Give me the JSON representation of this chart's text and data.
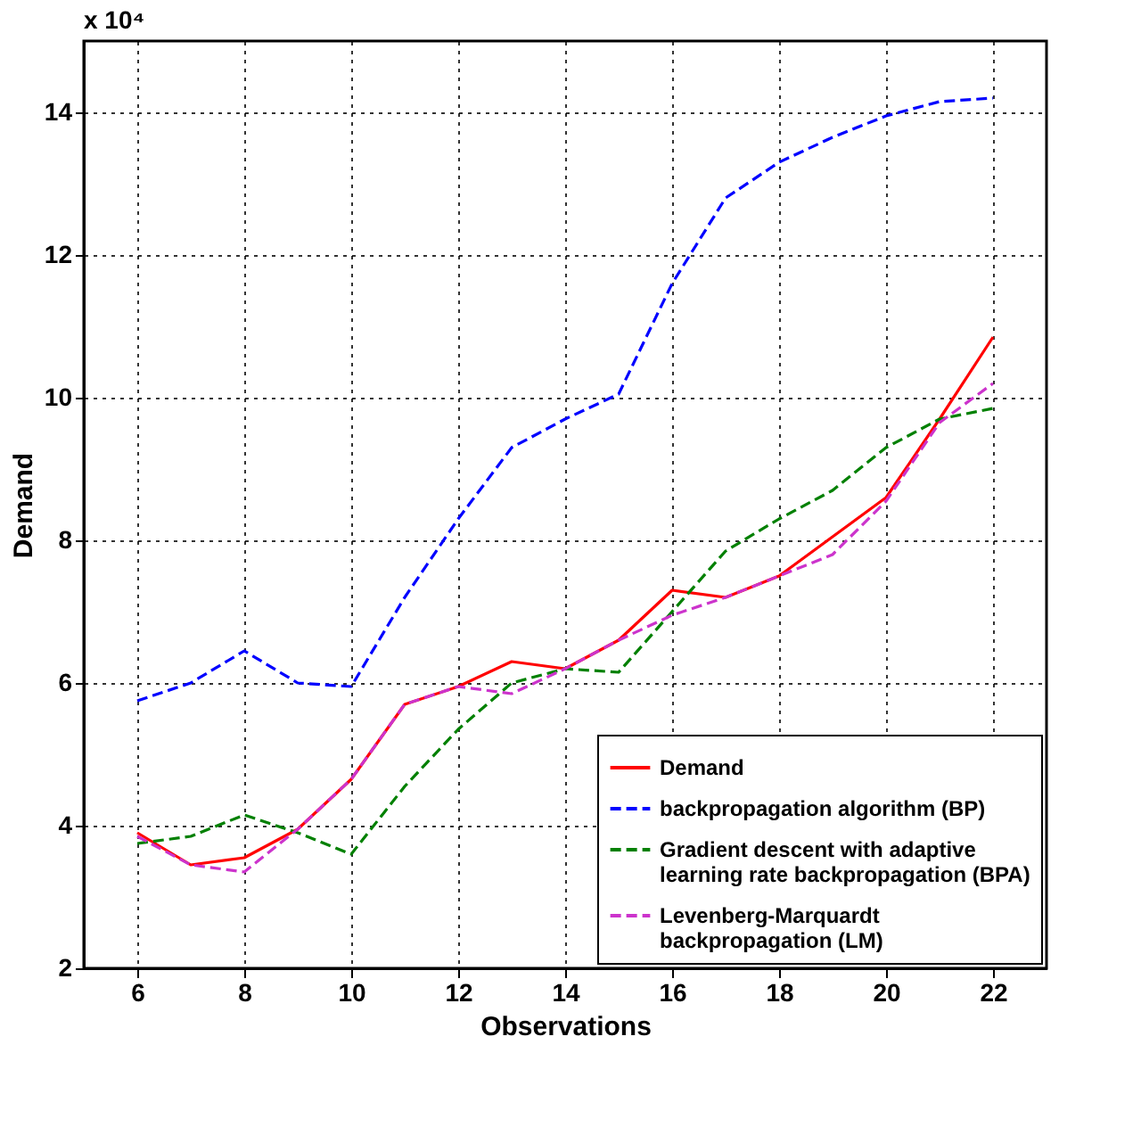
{
  "chart_data": {
    "type": "line",
    "xlabel": "Observations",
    "ylabel": "Demand",
    "annotations": [
      "x 10⁴"
    ],
    "x": [
      6,
      7,
      8,
      9,
      10,
      11,
      12,
      13,
      14,
      15,
      16,
      17,
      18,
      19,
      20,
      21,
      22
    ],
    "series": [
      {
        "name": "Demand",
        "color": "#ff0000",
        "line_style": "solid",
        "values": [
          3.9,
          3.45,
          3.55,
          3.95,
          4.65,
          5.7,
          5.95,
          6.3,
          6.2,
          6.6,
          7.3,
          7.2,
          7.5,
          8.05,
          8.6,
          9.7,
          10.85
        ]
      },
      {
        "name": "backpropagation algorithm (BP)",
        "color": "#0000ff",
        "line_style": "dashed",
        "values": [
          5.75,
          6.0,
          6.45,
          6.0,
          5.95,
          7.2,
          8.3,
          9.3,
          9.7,
          10.05,
          11.6,
          12.8,
          13.3,
          13.65,
          13.95,
          14.15,
          14.2
        ]
      },
      {
        "name": "Gradient descent with adaptive\nlearning rate backpropagation (BPA)",
        "color": "#008000",
        "line_style": "dashed",
        "values": [
          3.75,
          3.85,
          4.15,
          3.9,
          3.6,
          4.55,
          5.35,
          6.0,
          6.2,
          6.15,
          7.0,
          7.85,
          8.3,
          8.7,
          9.3,
          9.7,
          9.85
        ]
      },
      {
        "name": "Levenberg-Marquardt\nbackpropagation (LM)",
        "color": "#cc33cc",
        "line_style": "dashed",
        "values": [
          3.85,
          3.45,
          3.35,
          3.95,
          4.65,
          5.7,
          5.95,
          5.85,
          6.2,
          6.6,
          6.95,
          7.2,
          7.5,
          7.8,
          8.55,
          9.65,
          10.2
        ]
      }
    ],
    "xlim": [
      5,
      23
    ],
    "ylim": [
      2,
      15
    ],
    "xticks": [
      6,
      8,
      10,
      12,
      14,
      16,
      18,
      20,
      22
    ],
    "yticks": [
      2,
      4,
      6,
      8,
      10,
      12,
      14
    ],
    "grid": true,
    "legend": "bottom right",
    "marker": "none"
  }
}
